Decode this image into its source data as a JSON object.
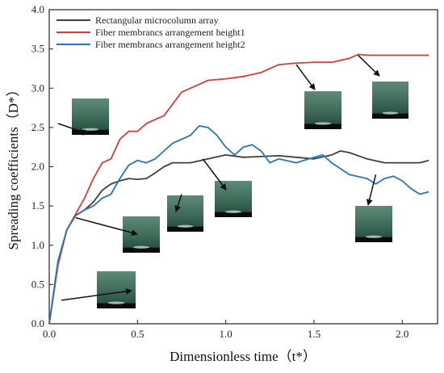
{
  "chart_data": {
    "type": "line",
    "title": "",
    "xlabel": "Dimensionless time（t*）",
    "ylabel": "Spreading coefficients（D*）",
    "xlim": [
      0,
      2.2
    ],
    "ylim": [
      0,
      4.0
    ],
    "x_ticks": [
      "0.0",
      "0.5",
      "1.0",
      "1.5",
      "2.0"
    ],
    "y_ticks": [
      "0.0",
      "0.5",
      "1.0",
      "1.5",
      "2.0",
      "2.5",
      "3.0",
      "3.5",
      "4.0"
    ],
    "grid": false,
    "legend_position": "top-left",
    "series": [
      {
        "name": "Rectangular microcolumn array",
        "color": "#404040",
        "x": [
          0,
          0.05,
          0.1,
          0.15,
          0.2,
          0.25,
          0.3,
          0.35,
          0.4,
          0.45,
          0.5,
          0.55,
          0.6,
          0.65,
          0.7,
          0.8,
          0.9,
          1.0,
          1.1,
          1.2,
          1.3,
          1.4,
          1.5,
          1.6,
          1.65,
          1.7,
          1.8,
          1.9,
          2.0,
          2.1,
          2.15
        ],
        "y": [
          0,
          0.8,
          1.2,
          1.38,
          1.45,
          1.55,
          1.7,
          1.78,
          1.82,
          1.85,
          1.84,
          1.85,
          1.92,
          2.0,
          2.05,
          2.05,
          2.1,
          2.15,
          2.12,
          2.13,
          2.14,
          2.12,
          2.1,
          2.15,
          2.2,
          2.18,
          2.1,
          2.05,
          2.05,
          2.05,
          2.08
        ]
      },
      {
        "name": "Fiber membrancs arrangement height1",
        "color": "#e0393b",
        "x": [
          0,
          0.05,
          0.1,
          0.15,
          0.2,
          0.25,
          0.3,
          0.35,
          0.4,
          0.45,
          0.5,
          0.55,
          0.6,
          0.65,
          0.7,
          0.75,
          0.8,
          0.85,
          0.9,
          1.0,
          1.1,
          1.2,
          1.3,
          1.4,
          1.5,
          1.6,
          1.7,
          1.75,
          1.8,
          2.0,
          2.15
        ],
        "y": [
          0,
          0.75,
          1.2,
          1.4,
          1.6,
          1.85,
          2.05,
          2.1,
          2.35,
          2.45,
          2.45,
          2.55,
          2.6,
          2.65,
          2.8,
          2.95,
          3.0,
          3.05,
          3.1,
          3.12,
          3.15,
          3.2,
          3.3,
          3.32,
          3.33,
          3.33,
          3.38,
          3.43,
          3.42,
          3.42,
          3.42
        ]
      },
      {
        "name": "Fiber membrancs arrangement height2",
        "color": "#2476bf",
        "x": [
          0,
          0.05,
          0.1,
          0.15,
          0.2,
          0.25,
          0.3,
          0.35,
          0.4,
          0.45,
          0.5,
          0.55,
          0.6,
          0.65,
          0.7,
          0.75,
          0.8,
          0.85,
          0.9,
          0.95,
          1.0,
          1.05,
          1.1,
          1.15,
          1.2,
          1.25,
          1.3,
          1.4,
          1.5,
          1.55,
          1.6,
          1.7,
          1.8,
          1.85,
          1.9,
          1.95,
          2.0,
          2.05,
          2.1,
          2.15
        ],
        "y": [
          0,
          0.8,
          1.2,
          1.38,
          1.45,
          1.5,
          1.6,
          1.65,
          1.85,
          2.02,
          2.08,
          2.05,
          2.1,
          2.2,
          2.3,
          2.35,
          2.4,
          2.52,
          2.5,
          2.4,
          2.25,
          2.15,
          2.25,
          2.28,
          2.2,
          2.05,
          2.1,
          2.05,
          2.12,
          2.15,
          2.05,
          1.9,
          1.85,
          1.78,
          1.85,
          1.88,
          1.82,
          1.72,
          1.65,
          1.68
        ]
      }
    ],
    "annotations": [
      {
        "name": "inset-photo",
        "data_x": 0.07,
        "data_y": 0.3
      },
      {
        "name": "inset-photo",
        "data_x": 0.05,
        "data_y": 2.55
      },
      {
        "name": "inset-photo",
        "data_x": 0.15,
        "data_y": 1.35
      },
      {
        "name": "inset-photo",
        "data_x": 0.75,
        "data_y": 1.65
      },
      {
        "name": "inset-photo",
        "data_x": 0.87,
        "data_y": 2.1
      },
      {
        "name": "inset-photo",
        "data_x": 1.4,
        "data_y": 3.3
      },
      {
        "name": "inset-photo",
        "data_x": 1.75,
        "data_y": 3.42
      },
      {
        "name": "inset-photo",
        "data_x": 1.85,
        "data_y": 1.9
      }
    ]
  }
}
